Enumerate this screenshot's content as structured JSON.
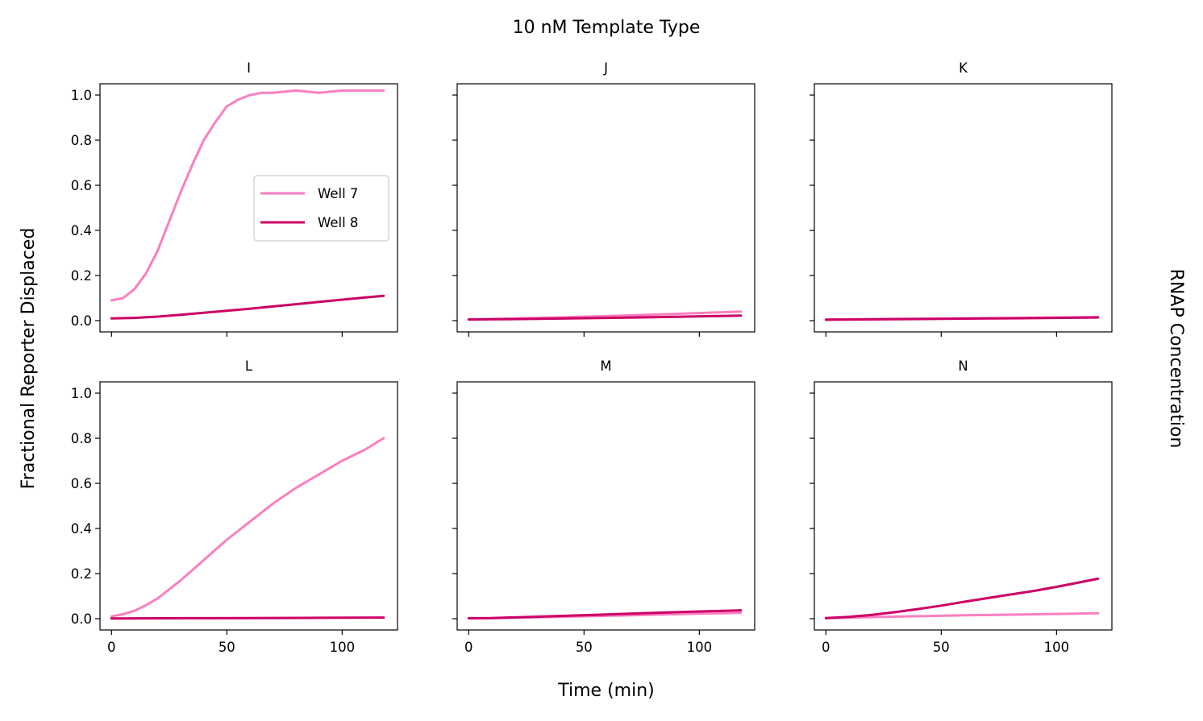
{
  "figure": {
    "title": "10 nM Template Type",
    "xlabel": "Time (min)",
    "ylabel": "Fractional Reporter Displaced",
    "right_label": "RNAP Concentration"
  },
  "colors": {
    "well7": "#fb7fbf",
    "well8": "#cc0066",
    "axes": "#000000",
    "background": "#ffffff"
  },
  "chart_data": [
    {
      "type": "line",
      "title": "I",
      "xlim": [
        -5,
        124
      ],
      "ylim": [
        -0.05,
        1.05
      ],
      "xticks": [
        0,
        50,
        100
      ],
      "yticks": [
        0.0,
        0.2,
        0.4,
        0.6,
        0.8,
        1.0
      ],
      "show_xticklabels": false,
      "show_yticklabels": true,
      "legend": {
        "location": "center-right",
        "entries": [
          "Well 7",
          "Well 8"
        ]
      },
      "series": [
        {
          "name": "Well 7",
          "x": [
            0,
            5,
            10,
            15,
            20,
            25,
            30,
            35,
            40,
            45,
            50,
            55,
            60,
            65,
            70,
            80,
            90,
            100,
            110,
            118
          ],
          "y": [
            0.09,
            0.1,
            0.14,
            0.21,
            0.31,
            0.44,
            0.57,
            0.69,
            0.8,
            0.88,
            0.95,
            0.98,
            1.0,
            1.01,
            1.01,
            1.02,
            1.01,
            1.02,
            1.02,
            1.02
          ]
        },
        {
          "name": "Well 8",
          "x": [
            0,
            10,
            20,
            30,
            40,
            50,
            60,
            70,
            80,
            90,
            100,
            110,
            118
          ],
          "y": [
            0.01,
            0.012,
            0.018,
            0.026,
            0.035,
            0.044,
            0.053,
            0.063,
            0.073,
            0.083,
            0.093,
            0.103,
            0.11
          ]
        }
      ]
    },
    {
      "type": "line",
      "title": "J",
      "xlim": [
        -5,
        124
      ],
      "ylim": [
        -0.05,
        1.05
      ],
      "xticks": [
        0,
        50,
        100
      ],
      "yticks": [
        0.0,
        0.2,
        0.4,
        0.6,
        0.8,
        1.0
      ],
      "show_xticklabels": false,
      "show_yticklabels": false,
      "series": [
        {
          "name": "Well 7",
          "x": [
            0,
            30,
            60,
            90,
            118
          ],
          "y": [
            0.005,
            0.012,
            0.02,
            0.03,
            0.04
          ]
        },
        {
          "name": "Well 8",
          "x": [
            0,
            30,
            60,
            90,
            118
          ],
          "y": [
            0.005,
            0.008,
            0.012,
            0.017,
            0.022
          ]
        }
      ]
    },
    {
      "type": "line",
      "title": "K",
      "xlim": [
        -5,
        124
      ],
      "ylim": [
        -0.05,
        1.05
      ],
      "xticks": [
        0,
        50,
        100
      ],
      "yticks": [
        0.0,
        0.2,
        0.4,
        0.6,
        0.8,
        1.0
      ],
      "show_xticklabels": false,
      "show_yticklabels": false,
      "series": [
        {
          "name": "Well 7",
          "x": [
            0,
            30,
            60,
            90,
            118
          ],
          "y": [
            0.005,
            0.008,
            0.01,
            0.013,
            0.016
          ]
        },
        {
          "name": "Well 8",
          "x": [
            0,
            30,
            60,
            90,
            118
          ],
          "y": [
            0.004,
            0.006,
            0.009,
            0.011,
            0.014
          ]
        }
      ]
    },
    {
      "type": "line",
      "title": "L",
      "xlim": [
        -5,
        124
      ],
      "ylim": [
        -0.05,
        1.05
      ],
      "xticks": [
        0,
        50,
        100
      ],
      "yticks": [
        0.0,
        0.2,
        0.4,
        0.6,
        0.8,
        1.0
      ],
      "show_xticklabels": true,
      "show_yticklabels": true,
      "series": [
        {
          "name": "Well 7",
          "x": [
            0,
            5,
            10,
            15,
            20,
            25,
            30,
            40,
            50,
            60,
            70,
            80,
            90,
            100,
            110,
            118
          ],
          "y": [
            0.01,
            0.02,
            0.035,
            0.06,
            0.09,
            0.13,
            0.17,
            0.26,
            0.35,
            0.43,
            0.51,
            0.58,
            0.64,
            0.7,
            0.75,
            0.8
          ]
        },
        {
          "name": "Well 8",
          "x": [
            0,
            30,
            60,
            90,
            118
          ],
          "y": [
            0.001,
            0.002,
            0.003,
            0.004,
            0.005
          ]
        }
      ]
    },
    {
      "type": "line",
      "title": "M",
      "xlim": [
        -5,
        124
      ],
      "ylim": [
        -0.05,
        1.05
      ],
      "xticks": [
        0,
        50,
        100
      ],
      "yticks": [
        0.0,
        0.2,
        0.4,
        0.6,
        0.8,
        1.0
      ],
      "show_xticklabels": true,
      "show_yticklabels": false,
      "series": [
        {
          "name": "Well 7",
          "x": [
            0,
            30,
            60,
            90,
            118
          ],
          "y": [
            0.001,
            0.006,
            0.013,
            0.02,
            0.026
          ]
        },
        {
          "name": "Well 8",
          "x": [
            0,
            10,
            30,
            60,
            90,
            118
          ],
          "y": [
            0.002,
            0.003,
            0.009,
            0.019,
            0.029,
            0.037
          ]
        }
      ]
    },
    {
      "type": "line",
      "title": "N",
      "xlim": [
        -5,
        124
      ],
      "ylim": [
        -0.05,
        1.05
      ],
      "xticks": [
        0,
        50,
        100
      ],
      "yticks": [
        0.0,
        0.2,
        0.4,
        0.6,
        0.8,
        1.0
      ],
      "show_xticklabels": true,
      "show_yticklabels": false,
      "series": [
        {
          "name": "Well 7",
          "x": [
            0,
            20,
            40,
            60,
            80,
            100,
            118
          ],
          "y": [
            0.002,
            0.007,
            0.011,
            0.015,
            0.018,
            0.021,
            0.024
          ]
        },
        {
          "name": "Well 8",
          "x": [
            0,
            10,
            20,
            30,
            40,
            50,
            60,
            70,
            80,
            90,
            100,
            110,
            118
          ],
          "y": [
            0.003,
            0.008,
            0.017,
            0.029,
            0.043,
            0.058,
            0.075,
            0.091,
            0.107,
            0.123,
            0.141,
            0.161,
            0.177
          ]
        }
      ]
    }
  ]
}
